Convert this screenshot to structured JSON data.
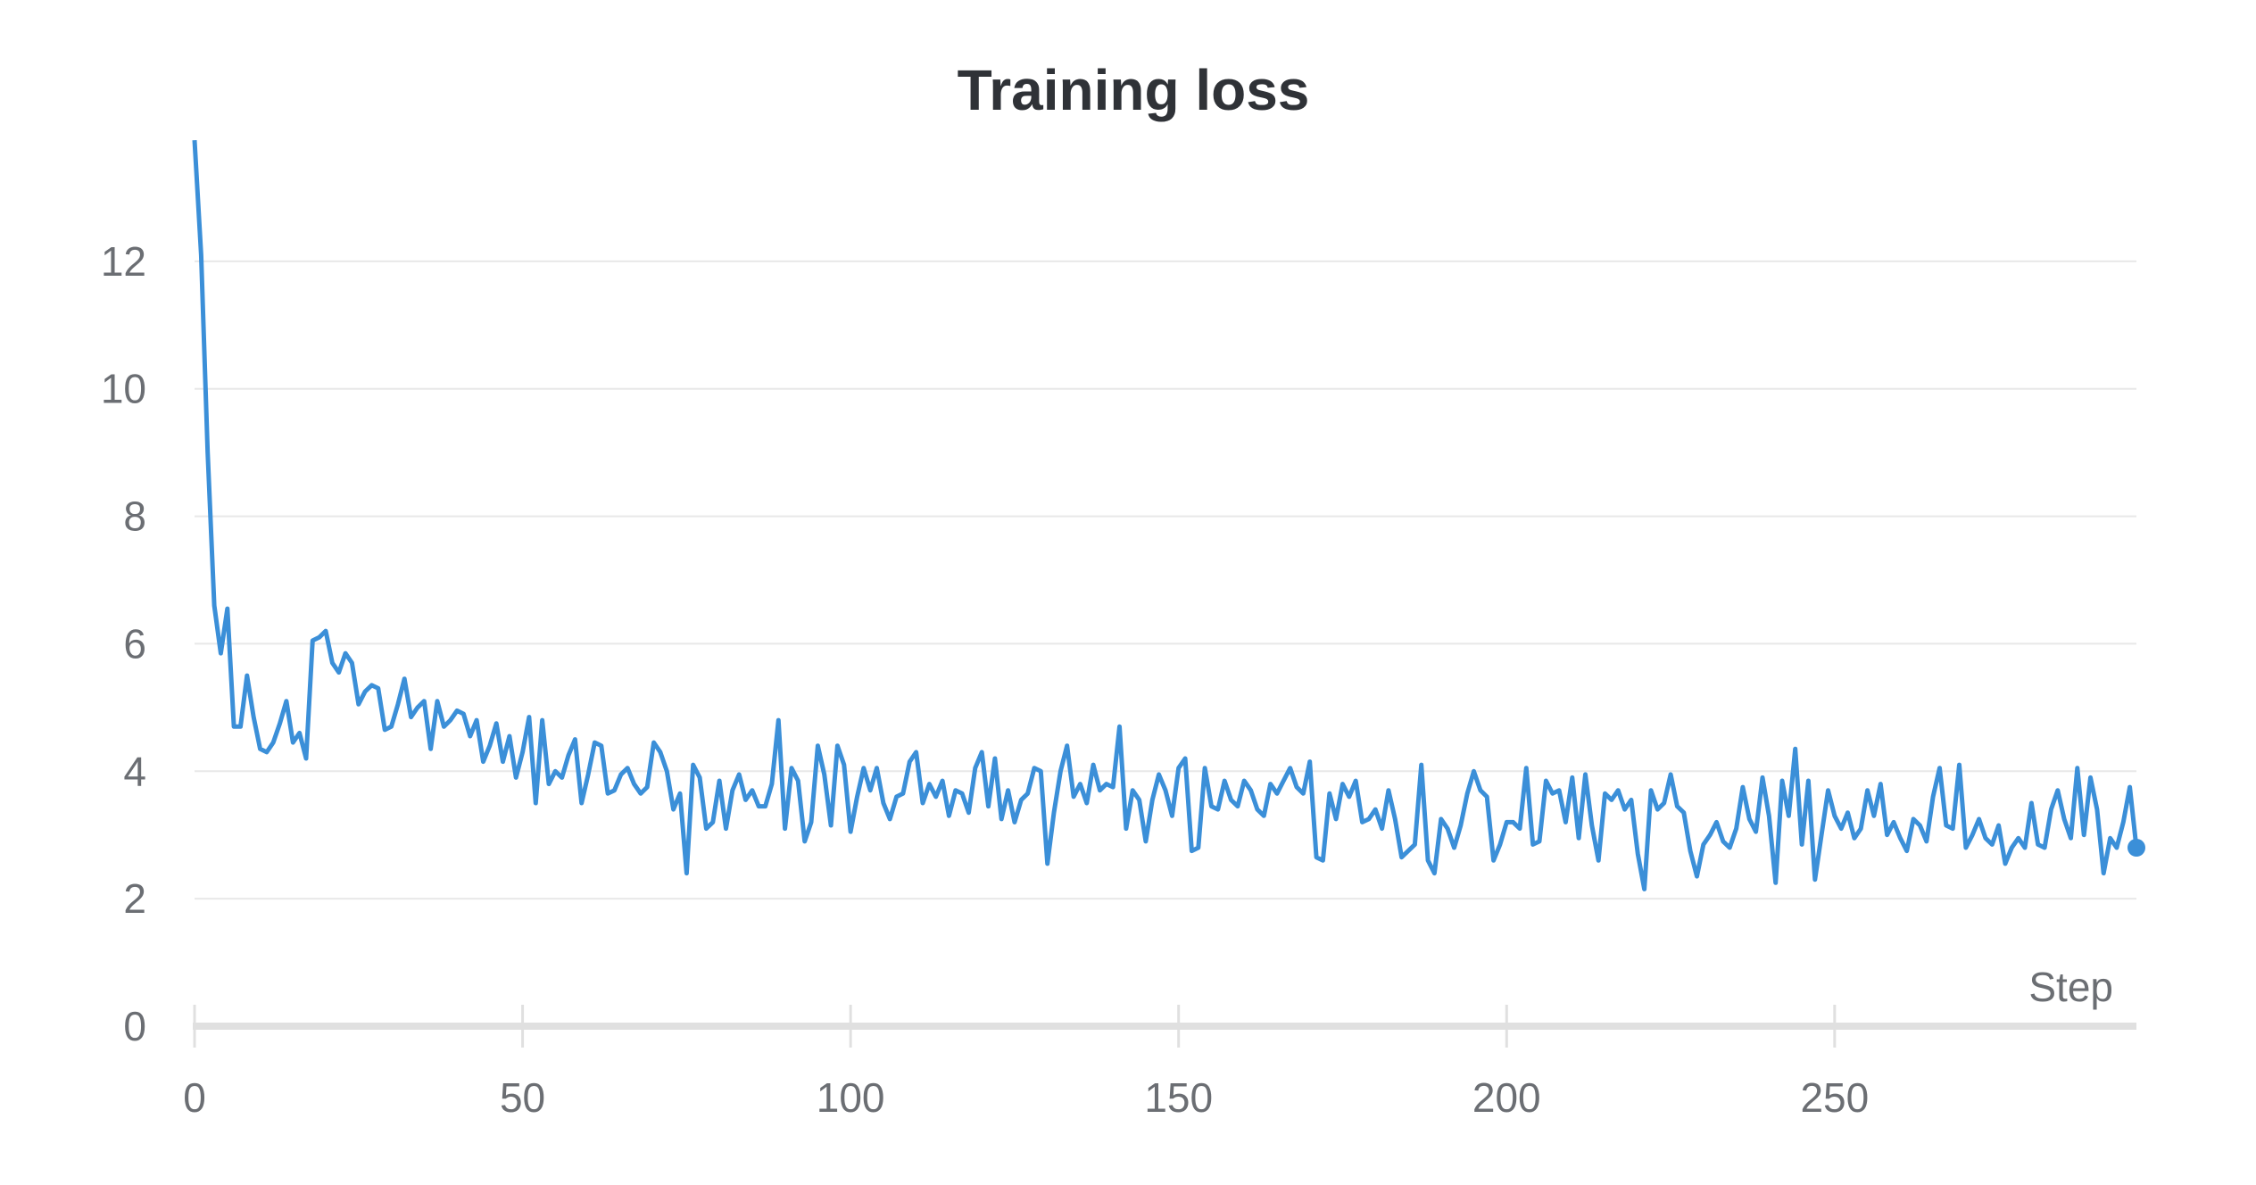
{
  "chart_data": {
    "type": "line",
    "title": "Training loss",
    "xlabel": "Step",
    "ylabel": "",
    "xlim": [
      0,
      296
    ],
    "ylim": [
      0,
      14
    ],
    "xticks": [
      0,
      50,
      100,
      150,
      200,
      250
    ],
    "yticks": [
      0,
      2,
      4,
      6,
      8,
      10,
      12
    ],
    "grid": true,
    "series": [
      {
        "color": "#3b8fd8",
        "end_marker": true,
        "x": [
          0,
          1,
          2,
          3,
          4,
          5,
          6,
          7,
          8,
          9,
          10,
          11,
          12,
          13,
          14,
          15,
          16,
          17,
          18,
          19,
          20,
          21,
          22,
          23,
          24,
          25,
          26,
          27,
          28,
          29,
          30,
          31,
          32,
          33,
          34,
          35,
          36,
          37,
          38,
          39,
          40,
          41,
          42,
          43,
          44,
          45,
          46,
          47,
          48,
          49,
          50,
          51,
          52,
          53,
          54,
          55,
          56,
          57,
          58,
          59,
          60,
          61,
          62,
          63,
          64,
          65,
          66,
          67,
          68,
          69,
          70,
          71,
          72,
          73,
          74,
          75,
          76,
          77,
          78,
          79,
          80,
          81,
          82,
          83,
          84,
          85,
          86,
          87,
          88,
          89,
          90,
          91,
          92,
          93,
          94,
          95,
          96,
          97,
          98,
          99,
          100,
          101,
          102,
          103,
          104,
          105,
          106,
          107,
          108,
          109,
          110,
          111,
          112,
          113,
          114,
          115,
          116,
          117,
          118,
          119,
          120,
          121,
          122,
          123,
          124,
          125,
          126,
          127,
          128,
          129,
          130,
          131,
          132,
          133,
          134,
          135,
          136,
          137,
          138,
          139,
          140,
          141,
          142,
          143,
          144,
          145,
          146,
          147,
          148,
          149,
          150,
          151,
          152,
          153,
          154,
          155,
          156,
          157,
          158,
          159,
          160,
          161,
          162,
          163,
          164,
          165,
          166,
          167,
          168,
          169,
          170,
          171,
          172,
          173,
          174,
          175,
          176,
          177,
          178,
          179,
          180,
          181,
          182,
          183,
          184,
          185,
          186,
          187,
          188,
          189,
          190,
          191,
          192,
          193,
          194,
          195,
          196,
          197,
          198,
          199,
          200,
          201,
          202,
          203,
          204,
          205,
          206,
          207,
          208,
          209,
          210,
          211,
          212,
          213,
          214,
          215,
          216,
          217,
          218,
          219,
          220,
          221,
          222,
          223,
          224,
          225,
          226,
          227,
          228,
          229,
          230,
          231,
          232,
          233,
          234,
          235,
          236,
          237,
          238,
          239,
          240,
          241,
          242,
          243,
          244,
          245,
          246,
          247,
          248,
          249,
          250,
          251,
          252,
          253,
          254,
          255,
          256,
          257,
          258,
          259,
          260,
          261,
          262,
          263,
          264,
          265,
          266,
          267,
          268,
          269,
          270,
          271,
          272,
          273,
          274,
          275,
          276,
          277,
          278,
          279,
          280,
          281,
          282,
          283,
          284,
          285,
          286,
          287,
          288,
          289,
          290,
          291,
          292,
          293,
          294,
          295,
          296
        ],
        "y": [
          13.9,
          12.1,
          9.0,
          6.6,
          5.85,
          6.55,
          4.7,
          4.7,
          5.5,
          4.85,
          4.35,
          4.3,
          4.45,
          4.75,
          5.1,
          4.45,
          4.6,
          4.2,
          6.05,
          6.1,
          6.2,
          5.7,
          5.55,
          5.85,
          5.7,
          5.05,
          5.25,
          5.35,
          5.3,
          4.65,
          4.7,
          5.05,
          5.45,
          4.85,
          5.0,
          5.1,
          4.35,
          5.1,
          4.7,
          4.8,
          4.95,
          4.9,
          4.55,
          4.8,
          4.15,
          4.4,
          4.75,
          4.15,
          4.55,
          3.9,
          4.3,
          4.85,
          3.5,
          4.8,
          3.8,
          4.0,
          3.9,
          4.25,
          4.5,
          3.5,
          3.95,
          4.45,
          4.4,
          3.65,
          3.7,
          3.95,
          4.05,
          3.8,
          3.65,
          3.75,
          4.45,
          4.3,
          4.0,
          3.4,
          3.65,
          2.4,
          4.1,
          3.9,
          3.1,
          3.2,
          3.85,
          3.1,
          3.7,
          3.95,
          3.55,
          3.7,
          3.45,
          3.45,
          3.8,
          4.8,
          3.1,
          4.05,
          3.85,
          2.9,
          3.2,
          4.4,
          3.95,
          3.15,
          4.4,
          4.1,
          3.05,
          3.6,
          4.05,
          3.7,
          4.05,
          3.5,
          3.25,
          3.6,
          3.65,
          4.15,
          4.3,
          3.5,
          3.8,
          3.6,
          3.85,
          3.3,
          3.7,
          3.65,
          3.35,
          4.05,
          4.3,
          3.45,
          4.2,
          3.25,
          3.7,
          3.2,
          3.55,
          3.65,
          4.05,
          4.0,
          2.55,
          3.35,
          4.0,
          4.4,
          3.6,
          3.8,
          3.5,
          4.1,
          3.7,
          3.8,
          3.75,
          4.7,
          3.1,
          3.7,
          3.55,
          2.9,
          3.55,
          3.95,
          3.7,
          3.3,
          4.05,
          4.2,
          2.75,
          2.8,
          4.05,
          3.45,
          3.4,
          3.85,
          3.55,
          3.45,
          3.85,
          3.7,
          3.4,
          3.3,
          3.8,
          3.65,
          3.85,
          4.05,
          3.75,
          3.65,
          4.15,
          2.65,
          2.6,
          3.65,
          3.25,
          3.8,
          3.6,
          3.85,
          3.2,
          3.25,
          3.4,
          3.1,
          3.7,
          3.25,
          2.65,
          2.75,
          2.85,
          4.1,
          2.6,
          2.4,
          3.25,
          3.1,
          2.8,
          3.15,
          3.65,
          4.0,
          3.7,
          3.6,
          2.6,
          2.85,
          3.2,
          3.2,
          3.1,
          4.05,
          2.85,
          2.9,
          3.85,
          3.65,
          3.7,
          3.2,
          3.9,
          2.95,
          3.95,
          3.15,
          2.6,
          3.65,
          3.55,
          3.7,
          3.4,
          3.55,
          2.7,
          2.15,
          3.7,
          3.4,
          3.5,
          3.95,
          3.45,
          3.35,
          2.75,
          2.35,
          2.85,
          3.0,
          3.2,
          2.9,
          2.8,
          3.1,
          3.75,
          3.25,
          3.05,
          3.9,
          3.3,
          2.25,
          3.85,
          3.3,
          4.35,
          2.85,
          3.85,
          2.3,
          3.0,
          3.7,
          3.3,
          3.1,
          3.35,
          2.95,
          3.1,
          3.7,
          3.3,
          3.8,
          3.0,
          3.2,
          2.95,
          2.75,
          3.25,
          3.15,
          2.9,
          3.6,
          4.05,
          3.15,
          3.1,
          4.1,
          2.8,
          3.0,
          3.25,
          2.95,
          2.85,
          3.15,
          2.55,
          2.8,
          2.95,
          2.8,
          3.5,
          2.85,
          2.8,
          3.4,
          3.7,
          3.25,
          2.95,
          4.05,
          3.0,
          3.9,
          3.4,
          2.4,
          2.95,
          2.8,
          3.2,
          3.75,
          2.8
        ]
      }
    ]
  }
}
